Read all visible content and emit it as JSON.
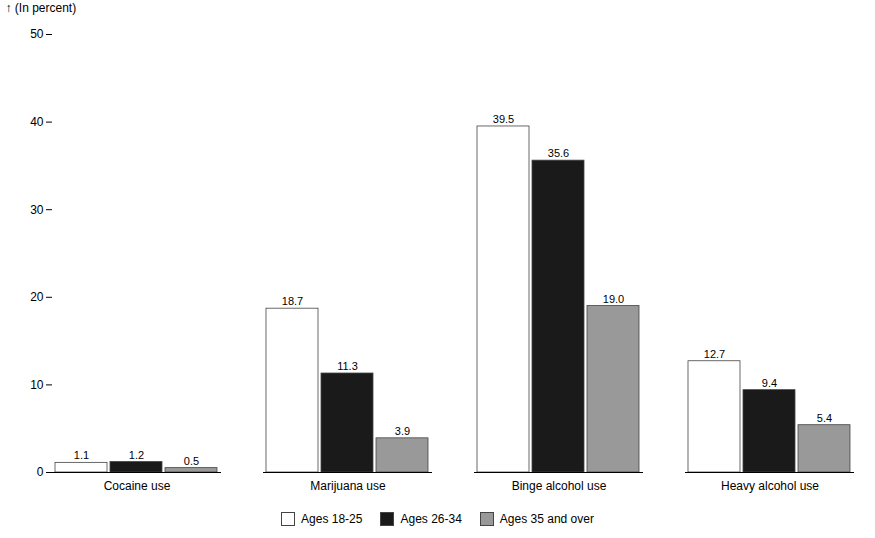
{
  "chart_data": {
    "type": "bar",
    "categories": [
      "Cocaine use",
      "Marijuana use",
      "Binge alcohol use",
      "Heavy alcohol use"
    ],
    "series": [
      {
        "name": "Ages 18-25",
        "color": "#ffffff",
        "values": [
          1.1,
          18.7,
          39.5,
          12.7
        ]
      },
      {
        "name": "Ages 26-34",
        "color": "#1a1a1a",
        "values": [
          1.2,
          11.3,
          35.6,
          9.4
        ]
      },
      {
        "name": "Ages 35 and over",
        "color": "#999999",
        "values": [
          0.5,
          3.9,
          19.0,
          5.4
        ],
        "value_labels": [
          "0.5",
          "3.9",
          "19.0",
          "5.4"
        ]
      }
    ],
    "ylabel": "(In percent)",
    "ylim": [
      0,
      50
    ],
    "yticks": [
      0,
      10,
      20,
      30,
      40,
      50
    ],
    "data_labels": true,
    "grid": false,
    "legend": "bottom"
  }
}
